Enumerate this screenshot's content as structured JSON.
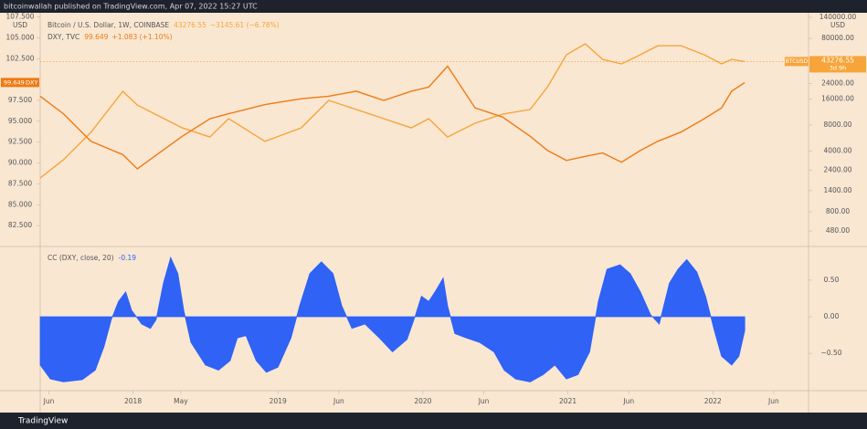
{
  "header": "bitcoinwallah published on TradingView.com, Apr 07, 2022 15:27 UTC",
  "footer": "TradingView",
  "chart_data": [
    {
      "type": "line",
      "x": [
        2017.36,
        2017.52,
        2017.71,
        2017.93,
        2018.03,
        2018.34,
        2018.53,
        2018.66,
        2018.91,
        2019.16,
        2019.35,
        2019.54,
        2019.73,
        2019.92,
        2020.04,
        2020.17,
        2020.36,
        2020.55,
        2020.74,
        2020.86,
        2020.99,
        2021.12,
        2021.24,
        2021.37,
        2021.5,
        2021.62,
        2021.78,
        2021.94,
        2022.06,
        2022.13,
        2022.22
      ],
      "xlim": [
        2017.36,
        2022.66
      ],
      "ylim": [
        80,
        108
      ],
      "yticks": [
        {
          "value": 107.5,
          "label": "107.500"
        },
        {
          "value": 105,
          "label": "105.000"
        },
        {
          "value": 102.5,
          "label": "102.500"
        },
        {
          "value": 97.5,
          "label": "97.500"
        },
        {
          "value": 95,
          "label": "95.000"
        },
        {
          "value": 92.5,
          "label": "92.500"
        },
        {
          "value": 90,
          "label": "90.000"
        },
        {
          "value": 87.5,
          "label": "87.500"
        },
        {
          "value": 85,
          "label": "85.000"
        },
        {
          "value": 82.5,
          "label": "82.500"
        }
      ],
      "y_unit": "USD",
      "y2lim": [
        318,
        158000
      ],
      "y2_log": true,
      "y2ticks": [
        {
          "value": 140000,
          "label": "140000.00"
        },
        {
          "value": 80000,
          "label": "80000.00"
        },
        {
          "value": 24000,
          "label": "24000.00"
        },
        {
          "value": 16000,
          "label": "16000.00"
        },
        {
          "value": 8000,
          "label": "8000.00"
        },
        {
          "value": 4000,
          "label": "4000.00"
        },
        {
          "value": 2400,
          "label": "2400.00"
        },
        {
          "value": 1400,
          "label": "1400.00"
        },
        {
          "value": 800,
          "label": "800.00"
        },
        {
          "value": 480,
          "label": "480.00"
        }
      ],
      "y2_unit": "USD",
      "price_line": true,
      "series": [
        {
          "name": "Bitcoin / U.S. Dollar, 1W, COINBASE",
          "tag": "BTCUSD",
          "change": "−3145.61 (−6.78%)",
          "countdown": "3d 9h",
          "color": "#f7a43a",
          "axis": "y2",
          "values": [
            1960,
            3180,
            6590,
            19600,
            13600,
            7430,
            5830,
            9480,
            5180,
            7430,
            15400,
            12100,
            9480,
            7430,
            9480,
            5830,
            8400,
            10700,
            12100,
            22100,
            51800,
            69200,
            45800,
            40600,
            51800,
            65900,
            65900,
            51800,
            40600,
            45800,
            43276.55
          ]
        },
        {
          "name": "DXY, TVC",
          "tag": "DXY",
          "change": "+1.083 (+1.10%)",
          "color": "#f07a12",
          "values": [
            98.0,
            95.9,
            92.6,
            91.0,
            89.3,
            93.2,
            95.3,
            95.9,
            97.0,
            97.7,
            98.0,
            98.6,
            97.5,
            98.6,
            99.1,
            101.6,
            96.6,
            95.5,
            93.2,
            91.5,
            90.3,
            90.8,
            91.2,
            90.1,
            91.5,
            92.6,
            93.7,
            95.3,
            96.6,
            98.6,
            99.649
          ]
        }
      ]
    },
    {
      "type": "area",
      "title": "CC (DXY, close, 20)",
      "color": "#2f62f5",
      "x": [
        2017.36,
        2017.43,
        2017.52,
        2017.65,
        2017.74,
        2017.8,
        2017.85,
        2017.9,
        2017.95,
        2017.99,
        2018.06,
        2018.12,
        2018.16,
        2018.21,
        2018.26,
        2018.31,
        2018.35,
        2018.4,
        2018.5,
        2018.59,
        2018.67,
        2018.72,
        2018.78,
        2018.85,
        2018.92,
        2019.0,
        2019.09,
        2019.15,
        2019.22,
        2019.3,
        2019.38,
        2019.44,
        2019.51,
        2019.6,
        2019.7,
        2019.79,
        2019.89,
        2019.95,
        2019.99,
        2020.04,
        2020.09,
        2020.14,
        2020.17,
        2020.22,
        2020.3,
        2020.39,
        2020.49,
        2020.56,
        2020.64,
        2020.74,
        2020.83,
        2020.91,
        2020.99,
        2021.07,
        2021.15,
        2021.21,
        2021.27,
        2021.36,
        2021.43,
        2021.5,
        2021.57,
        2021.63,
        2021.7,
        2021.76,
        2021.82,
        2021.89,
        2021.95,
        2022.01,
        2022.06,
        2022.13,
        2022.18,
        2022.22
      ],
      "values": [
        -0.66,
        -0.85,
        -0.89,
        -0.86,
        -0.73,
        -0.41,
        -0.04,
        0.21,
        0.34,
        0.09,
        -0.1,
        -0.16,
        -0.04,
        0.46,
        0.81,
        0.59,
        0.09,
        -0.35,
        -0.66,
        -0.73,
        -0.6,
        -0.29,
        -0.26,
        -0.6,
        -0.76,
        -0.69,
        -0.29,
        0.15,
        0.59,
        0.75,
        0.59,
        0.15,
        -0.16,
        -0.1,
        -0.29,
        -0.48,
        -0.31,
        0.03,
        0.28,
        0.21,
        0.36,
        0.53,
        0.15,
        -0.23,
        -0.29,
        -0.35,
        -0.48,
        -0.73,
        -0.85,
        -0.89,
        -0.79,
        -0.66,
        -0.85,
        -0.79,
        -0.48,
        0.21,
        0.65,
        0.71,
        0.59,
        0.34,
        0.03,
        -0.1,
        0.46,
        0.65,
        0.78,
        0.61,
        0.28,
        -0.19,
        -0.54,
        -0.66,
        -0.54,
        -0.19
      ],
      "xlim": [
        2017.36,
        2022.66
      ],
      "ylim": [
        -1.01,
        0.96
      ],
      "yticks": [
        {
          "value": 0.5,
          "label": "0.50"
        },
        {
          "value": 0,
          "label": "0.00"
        },
        {
          "value": -0.5,
          "label": "−0.50"
        }
      ],
      "xticks": [
        {
          "value": 2017.42,
          "label": "Jun"
        },
        2018,
        {
          "value": 2018.33,
          "label": "May"
        },
        2019,
        {
          "value": 2019.42,
          "label": "Jun"
        },
        2020,
        {
          "value": 2020.42,
          "label": "Jun"
        },
        2021,
        {
          "value": 2021.42,
          "label": "Jun"
        },
        2022,
        {
          "value": 2022.42,
          "label": "Jun"
        }
      ]
    }
  ]
}
